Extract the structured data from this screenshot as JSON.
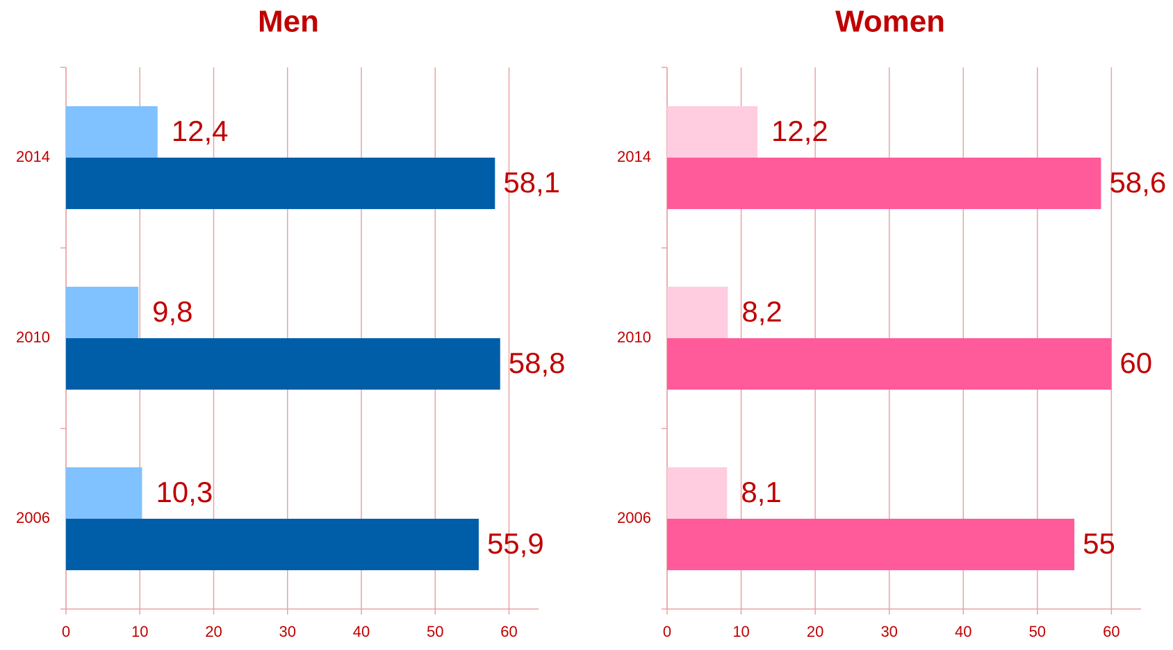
{
  "chart_data": [
    {
      "type": "bar",
      "orientation": "horizontal",
      "title": "Men",
      "categories": [
        "2014",
        "2010",
        "2006"
      ],
      "series": [
        {
          "color": "#80c1ff",
          "values": [
            12.4,
            9.8,
            10.3
          ],
          "value_labels": [
            "12,4",
            "9,8",
            "10,3"
          ]
        },
        {
          "color": "#005ea8",
          "values": [
            58.1,
            58.8,
            55.9
          ],
          "value_labels": [
            "58,1",
            "58,8",
            "55,9"
          ]
        }
      ],
      "xlim": [
        0,
        64
      ],
      "xticks": [
        0,
        10,
        20,
        30,
        40,
        50,
        60
      ],
      "grid": true
    },
    {
      "type": "bar",
      "orientation": "horizontal",
      "title": "Women",
      "categories": [
        "2014",
        "2010",
        "2006"
      ],
      "series": [
        {
          "color": "#ffcce0",
          "values": [
            12.2,
            8.2,
            8.1
          ],
          "value_labels": [
            "12,2",
            "8,2",
            "8,1"
          ]
        },
        {
          "color": "#ff5a9a",
          "values": [
            58.6,
            60,
            55
          ],
          "value_labels": [
            "58,6",
            "60",
            "55"
          ]
        }
      ],
      "xlim": [
        0,
        64
      ],
      "xticks": [
        0,
        10,
        20,
        30,
        40,
        50,
        60
      ],
      "grid": true
    }
  ]
}
